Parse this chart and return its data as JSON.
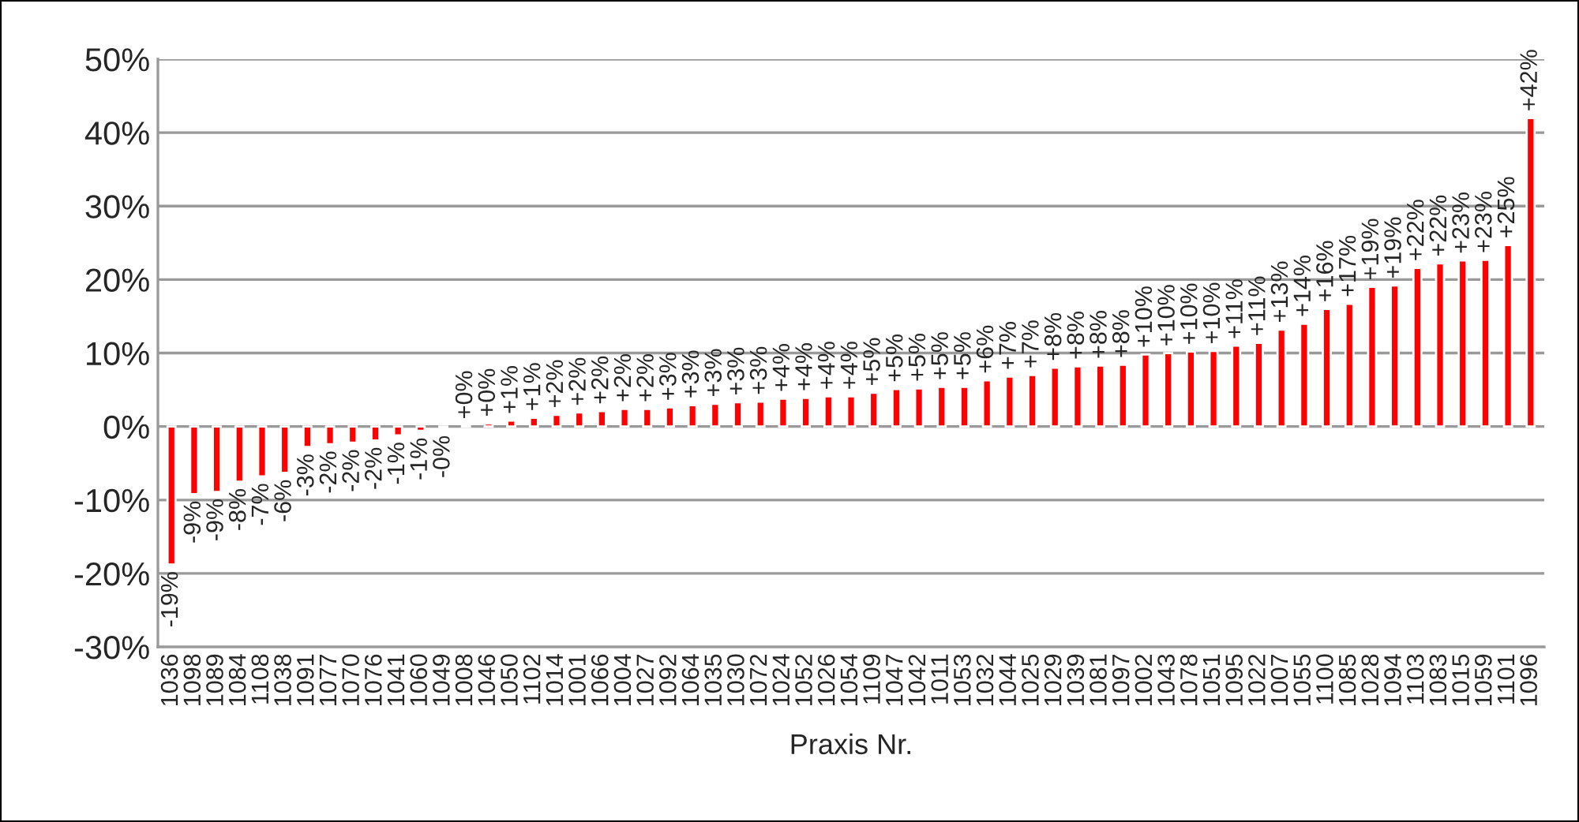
{
  "chart_data": {
    "type": "bar",
    "xlabel": "Praxis Nr.",
    "categories": [
      "1036",
      "1098",
      "1089",
      "1084",
      "1108",
      "1038",
      "1091",
      "1077",
      "1070",
      "1076",
      "1041",
      "1060",
      "1049",
      "1008",
      "1046",
      "1050",
      "1102",
      "1014",
      "1001",
      "1066",
      "1004",
      "1027",
      "1092",
      "1064",
      "1035",
      "1030",
      "1072",
      "1024",
      "1052",
      "1026",
      "1054",
      "1109",
      "1047",
      "1042",
      "1011",
      "1053",
      "1032",
      "1044",
      "1025",
      "1029",
      "1039",
      "1081",
      "1097",
      "1002",
      "1043",
      "1078",
      "1051",
      "1095",
      "1022",
      "1007",
      "1055",
      "1100",
      "1085",
      "1028",
      "1094",
      "1103",
      "1083",
      "1015",
      "1059",
      "1101",
      "1096"
    ],
    "values": [
      -18.8,
      -9.2,
      -8.9,
      -7.5,
      -6.8,
      -6.3,
      -2.8,
      -2.4,
      -2.2,
      -1.9,
      -1.2,
      -0.6,
      -0.3,
      0.1,
      0.4,
      0.8,
      1.2,
      1.6,
      1.9,
      2.1,
      2.4,
      2.4,
      2.6,
      2.9,
      3.1,
      3.3,
      3.4,
      3.8,
      3.9,
      4.1,
      4.1,
      4.6,
      5.1,
      5.2,
      5.4,
      5.4,
      6.3,
      6.8,
      7.0,
      8.0,
      8.2,
      8.3,
      8.4,
      9.8,
      10.0,
      10.2,
      10.3,
      11.0,
      11.4,
      13.2,
      14.0,
      16.0,
      16.7,
      19.0,
      19.2,
      21.6,
      22.2,
      22.6,
      22.7,
      24.7,
      42.0
    ],
    "value_labels": [
      "-19%",
      "-9%",
      "-9%",
      "-8%",
      "-7%",
      "-6%",
      "-3%",
      "-2%",
      "-2%",
      "-2%",
      "-1%",
      "-1%",
      "-0%",
      "+0%",
      "+0%",
      "+1%",
      "+1%",
      "+2%",
      "+2%",
      "+2%",
      "+2%",
      "+2%",
      "+3%",
      "+3%",
      "+3%",
      "+3%",
      "+3%",
      "+4%",
      "+4%",
      "+4%",
      "+4%",
      "+5%",
      "+5%",
      "+5%",
      "+5%",
      "+5%",
      "+6%",
      "+7%",
      "+7%",
      "+8%",
      "+8%",
      "+8%",
      "+8%",
      "+10%",
      "+10%",
      "+10%",
      "+10%",
      "+11%",
      "+11%",
      "+13%",
      "+14%",
      "+16%",
      "+17%",
      "+19%",
      "+19%",
      "+22%",
      "+22%",
      "+23%",
      "+23%",
      "+25%",
      "+42%"
    ],
    "color": "#ff0000",
    "ylim": [
      -30,
      50
    ],
    "yticks": [
      {
        "value": -30,
        "label": "-30%"
      },
      {
        "value": -20,
        "label": "-20%"
      },
      {
        "value": -10,
        "label": "-10%"
      },
      {
        "value": 0,
        "label": "0%"
      },
      {
        "value": 10,
        "label": "10%"
      },
      {
        "value": 20,
        "label": "20%"
      },
      {
        "value": 30,
        "label": "30%"
      },
      {
        "value": 40,
        "label": "40%"
      },
      {
        "value": 50,
        "label": "50%"
      }
    ],
    "grid": "y"
  }
}
